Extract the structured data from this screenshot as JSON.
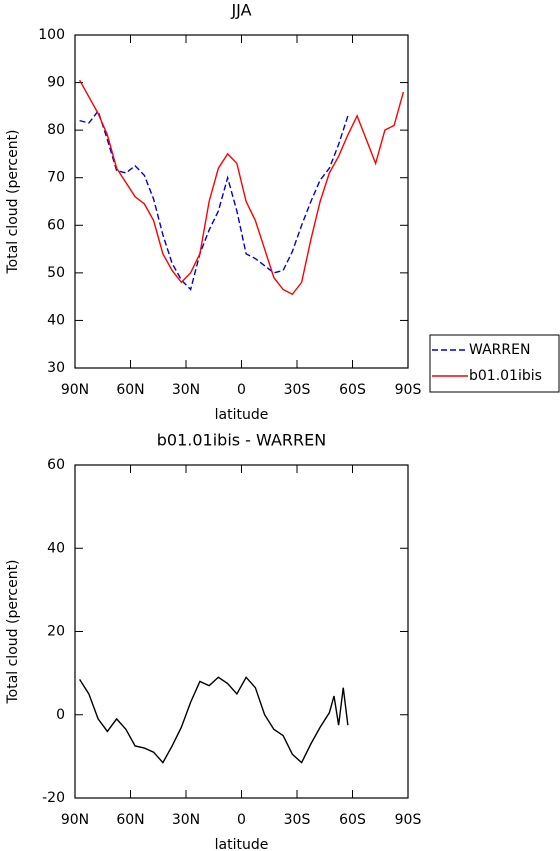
{
  "chart_data": [
    {
      "type": "line",
      "title": "JJA",
      "xlabel": "latitude",
      "ylabel": "Total cloud (percent)",
      "x": [
        87.5,
        82.5,
        77.5,
        72.5,
        67.5,
        62.5,
        57.5,
        52.5,
        47.5,
        42.5,
        37.5,
        32.5,
        27.5,
        22.5,
        17.5,
        12.5,
        7.5,
        2.5,
        -2.5,
        -7.5,
        -12.5,
        -17.5,
        -22.5,
        -27.5,
        -32.5,
        -37.5,
        -42.5,
        -47.5,
        -52.5,
        -57.5,
        -62.5,
        -67.5,
        -72.5,
        -77.5,
        -82.5,
        -87.5
      ],
      "series": [
        {
          "name": "WARREN",
          "color": "#0000cc",
          "dash": true,
          "values": [
            82,
            81.5,
            84,
            78,
            71.5,
            71,
            72.5,
            70.5,
            65.5,
            58,
            52,
            48.5,
            46.5,
            54,
            59,
            63,
            70,
            63,
            54,
            53,
            51.5,
            50,
            50.5,
            54.5,
            60,
            65,
            69.5,
            72,
            77,
            83,
            null,
            null,
            null,
            null,
            null,
            null
          ]
        },
        {
          "name": "b01.01ibis",
          "color": "#ff0000",
          "dash": false,
          "values": [
            90.5,
            87,
            83.5,
            79,
            72,
            69,
            66,
            64.5,
            61,
            54,
            50.5,
            48,
            50,
            54,
            65,
            72,
            75,
            73,
            65,
            61,
            55,
            49,
            46.5,
            45.5,
            48,
            57,
            65,
            71,
            74.5,
            79,
            83,
            78,
            73,
            80,
            81,
            88
          ]
        }
      ],
      "xlim": [
        90,
        -90
      ],
      "xticks": [
        {
          "value": 90,
          "label": "90N"
        },
        {
          "value": 60,
          "label": "60N"
        },
        {
          "value": 30,
          "label": "30N"
        },
        0,
        {
          "value": -30,
          "label": "30S"
        },
        {
          "value": -60,
          "label": "60S"
        },
        {
          "value": -90,
          "label": "90S"
        }
      ],
      "ylim": [
        30,
        100
      ],
      "yticks": [
        30,
        40,
        50,
        60,
        70,
        80,
        90,
        100
      ],
      "legend": "right"
    },
    {
      "type": "line",
      "title": "b01.01ibis - WARREN",
      "xlabel": "latitude",
      "ylabel": "Total cloud (percent)",
      "x": [
        87.5,
        82.5,
        77.5,
        72.5,
        67.5,
        62.5,
        57.5,
        52.5,
        47.5,
        42.5,
        37.5,
        32.5,
        27.5,
        22.5,
        17.5,
        12.5,
        7.5,
        2.5,
        -2.5,
        -7.5,
        -12.5,
        -17.5,
        -22.5,
        -27.5,
        -32.5,
        -37.5,
        -42.5,
        -47.5,
        -50,
        -52.5,
        -55,
        -57.5
      ],
      "series": [
        {
          "name": "b01.01ibis - WARREN",
          "color": "#000000",
          "dash": false,
          "values": [
            8.5,
            5,
            -1,
            -4,
            -1,
            -3.5,
            -7.5,
            -8,
            -9,
            -11.5,
            -7.5,
            -3,
            3,
            8,
            7,
            9,
            7.5,
            5,
            9,
            6.5,
            0,
            -3.5,
            -5,
            -9.5,
            -11.5,
            -7,
            -3,
            0.5,
            4.5,
            -2.5,
            6.5,
            -2.5
          ]
        }
      ],
      "xlim": [
        90,
        -90
      ],
      "xticks": [
        {
          "value": 90,
          "label": "90N"
        },
        {
          "value": 60,
          "label": "60N"
        },
        {
          "value": 30,
          "label": "30N"
        },
        0,
        {
          "value": -30,
          "label": "30S"
        },
        {
          "value": -60,
          "label": "60S"
        },
        {
          "value": -90,
          "label": "90S"
        }
      ],
      "ylim": [
        -20,
        60
      ],
      "yticks": [
        -20,
        0,
        20,
        40,
        60
      ]
    }
  ]
}
